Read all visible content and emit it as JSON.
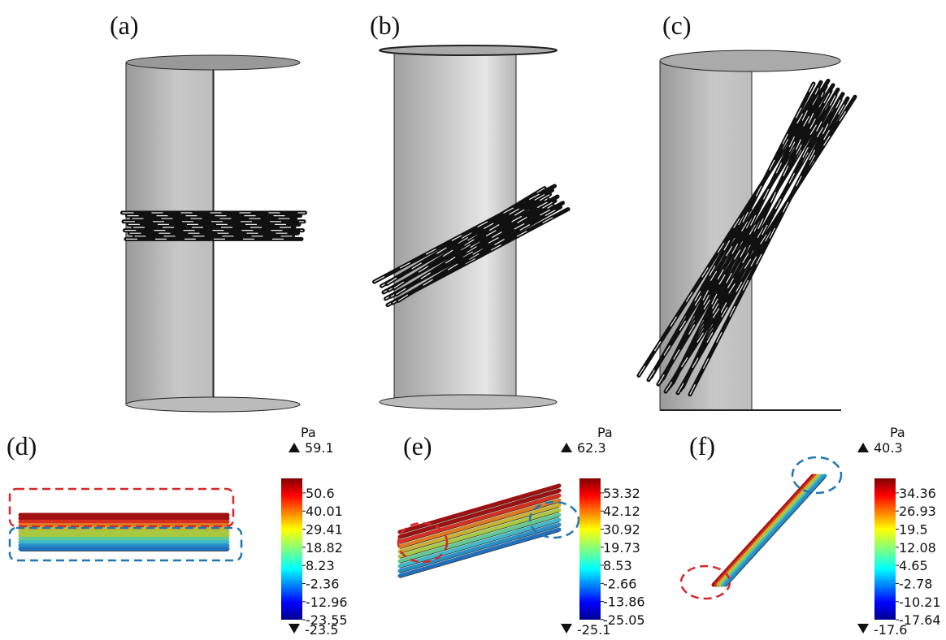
{
  "panels": [
    {
      "label": "(a)"
    },
    {
      "label": "(b)"
    },
    {
      "label": "(c)"
    },
    {
      "label": "(d)"
    },
    {
      "label": "(e)"
    },
    {
      "label": "(f)"
    }
  ],
  "colorbars": [
    {
      "unit": "Pa",
      "max": 59.1,
      "min": -23.5,
      "ticks": [
        50.6,
        40.01,
        29.41,
        18.82,
        8.23,
        -2.36,
        -12.96,
        -23.55
      ]
    },
    {
      "unit": "Pa",
      "max": 62.3,
      "min": -25.1,
      "ticks": [
        53.32,
        42.12,
        30.92,
        19.73,
        8.53,
        -2.66,
        -13.86,
        -25.05
      ]
    },
    {
      "unit": "Pa",
      "max": 40.3,
      "min": -17.6,
      "ticks": [
        34.36,
        26.93,
        19.5,
        12.08,
        4.65,
        -2.78,
        -10.21,
        -17.64
      ]
    }
  ]
}
